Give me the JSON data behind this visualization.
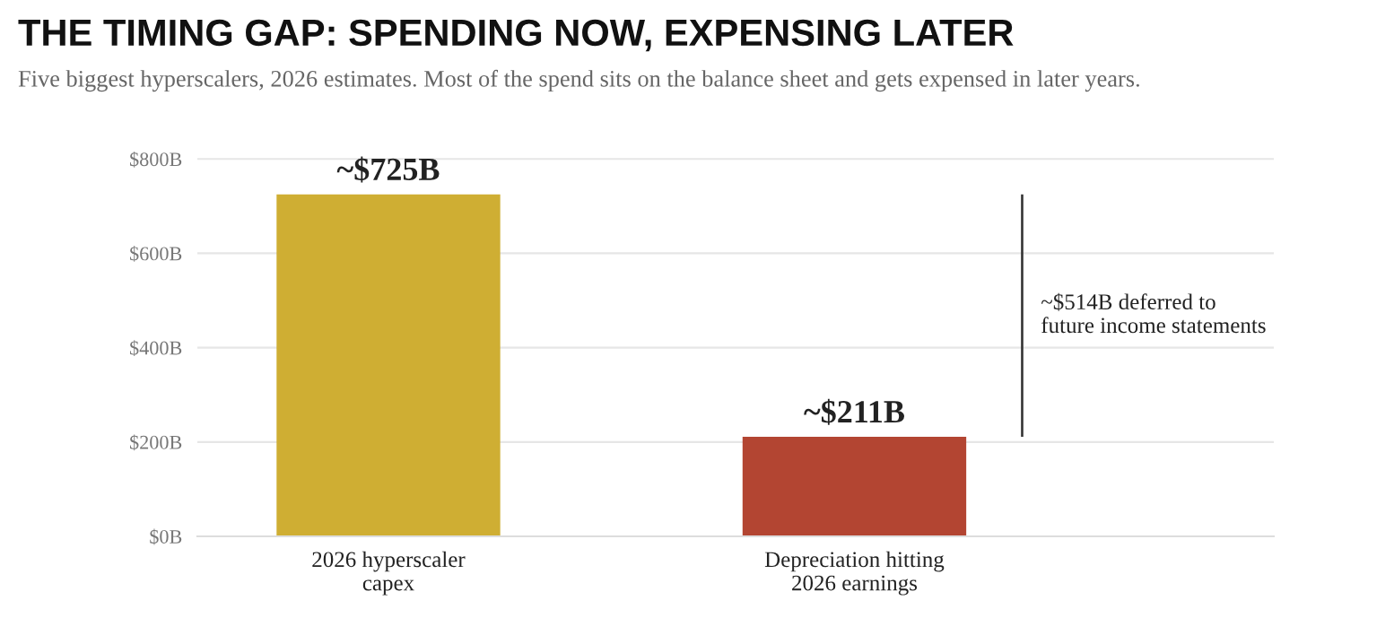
{
  "chart_data": {
    "type": "bar",
    "title": "THE TIMING GAP: SPENDING NOW, EXPENSING LATER",
    "subtitle": "Five biggest hyperscalers, 2026 estimates. Most of the spend sits on the balance sheet and gets expensed in later years.",
    "categories": [
      "2026 hyperscaler\ncapex",
      "Depreciation hitting\n2026 earnings"
    ],
    "values": [
      725,
      211
    ],
    "colors": [
      "#cfae33",
      "#b34532"
    ],
    "value_labels": [
      "~$725B",
      "~$211B"
    ],
    "ylim": [
      0,
      810
    ],
    "yticks": [
      {
        "value": 0,
        "label": "$0B"
      },
      {
        "value": 200,
        "label": "$200B"
      },
      {
        "value": 400,
        "label": "$400B"
      },
      {
        "value": 600,
        "label": "$600B"
      },
      {
        "value": 800,
        "label": "$800B"
      }
    ],
    "grid": "y",
    "annotations": [
      "~$514B deferred to\nfuture income statements"
    ]
  }
}
